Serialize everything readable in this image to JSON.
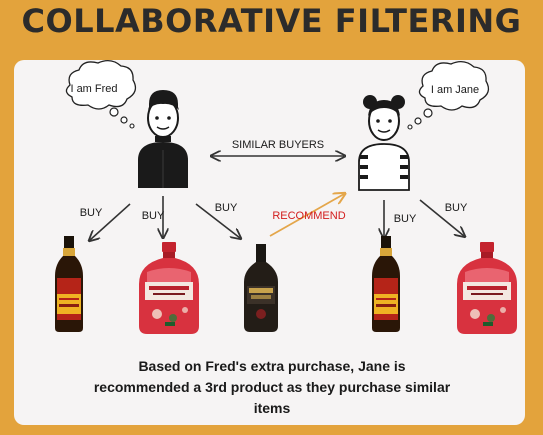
{
  "title": "COLLABORATIVE FILTERING",
  "fred": {
    "thought": "I am Fred"
  },
  "jane": {
    "thought": "I am Jane"
  },
  "labels": {
    "similar_buyers": "SIMILAR BUYERS",
    "buy": "BUY",
    "recommend": "RECOMMEND"
  },
  "caption": "Based on Fred's extra purchase, Jane is recommended a 3rd product as they purchase similar items",
  "colors": {
    "background": "#e3a33c",
    "panel": "#f6f4f4",
    "recommend_text": "#d21d1d",
    "recommend_arrow": "#e4a64a"
  },
  "icons": [
    "fred-person-icon",
    "jane-person-icon",
    "liqueur-bottle-icon",
    "red-gin-bottle-icon",
    "dark-bottle-icon"
  ]
}
